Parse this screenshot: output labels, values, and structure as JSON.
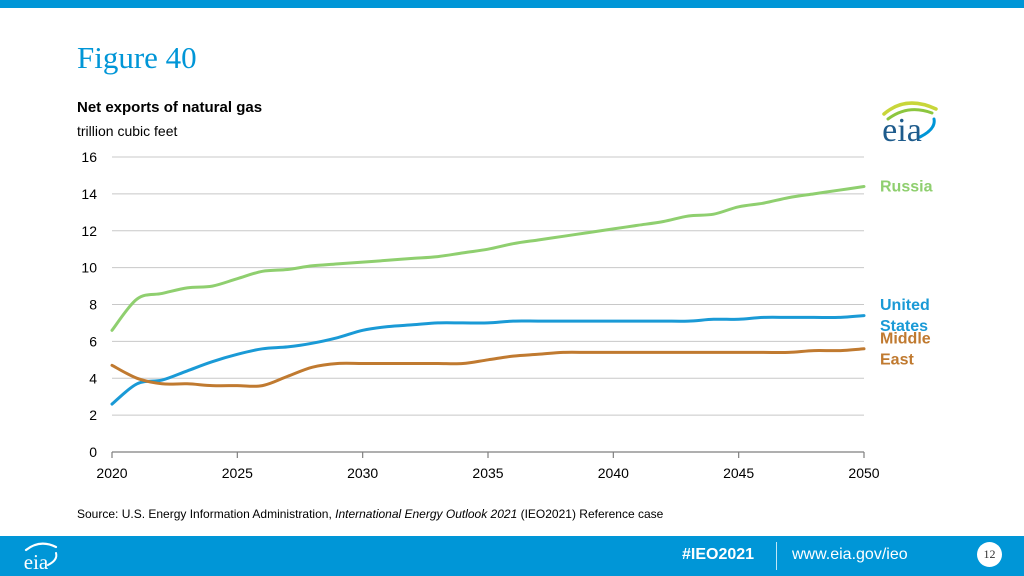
{
  "figure_title": "Figure 40",
  "source": {
    "prefix": "Source:  U.S. Energy Information Administration, ",
    "publication": "International Energy Outlook 2021",
    "suffix": " (IEO2021) Reference case"
  },
  "logo_text": "eia",
  "footer": {
    "hashtag": "#IEO2021",
    "website": "www.eia.gov/ieo",
    "page_number": "12"
  },
  "colors": {
    "brand_blue": "#0096d7",
    "russia": "#8fcf6f",
    "united_states": "#1a9ad6",
    "middle_east": "#c07a30",
    "grid": "#c8c8c8",
    "logo_yellow": "#c8d63a",
    "logo_green": "#8cc63f"
  },
  "chart_data": {
    "type": "line",
    "title": "Net exports of natural gas",
    "ylabel": "trillion cubic feet",
    "xlabel": "",
    "xlim": [
      2020,
      2050
    ],
    "ylim": [
      0,
      16
    ],
    "x_ticks": [
      2020,
      2025,
      2030,
      2035,
      2040,
      2045,
      2050
    ],
    "y_ticks": [
      0,
      2,
      4,
      6,
      8,
      10,
      12,
      14,
      16
    ],
    "grid": true,
    "legend": "inline labels at right end of each line",
    "x": [
      2020,
      2021,
      2022,
      2023,
      2024,
      2025,
      2026,
      2027,
      2028,
      2029,
      2030,
      2031,
      2032,
      2033,
      2034,
      2035,
      2036,
      2037,
      2038,
      2039,
      2040,
      2041,
      2042,
      2043,
      2044,
      2045,
      2046,
      2047,
      2048,
      2049,
      2050
    ],
    "series": [
      {
        "name": "Russia",
        "label_lines": [
          "Russia"
        ],
        "color": "#8fcf6f",
        "values": [
          6.6,
          8.3,
          8.6,
          8.9,
          9.0,
          9.4,
          9.8,
          9.9,
          10.1,
          10.2,
          10.3,
          10.4,
          10.5,
          10.6,
          10.8,
          11.0,
          11.3,
          11.5,
          11.7,
          11.9,
          12.1,
          12.3,
          12.5,
          12.8,
          12.9,
          13.3,
          13.5,
          13.8,
          14.0,
          14.2,
          14.4
        ]
      },
      {
        "name": "United States",
        "label_lines": [
          "United",
          "States"
        ],
        "color": "#1a9ad6",
        "values": [
          2.6,
          3.7,
          3.9,
          4.4,
          4.9,
          5.3,
          5.6,
          5.7,
          5.9,
          6.2,
          6.6,
          6.8,
          6.9,
          7.0,
          7.0,
          7.0,
          7.1,
          7.1,
          7.1,
          7.1,
          7.1,
          7.1,
          7.1,
          7.1,
          7.2,
          7.2,
          7.3,
          7.3,
          7.3,
          7.3,
          7.4
        ]
      },
      {
        "name": "Middle East",
        "label_lines": [
          "Middle",
          "East"
        ],
        "color": "#c07a30",
        "values": [
          4.7,
          4.0,
          3.7,
          3.7,
          3.6,
          3.6,
          3.6,
          4.1,
          4.6,
          4.8,
          4.8,
          4.8,
          4.8,
          4.8,
          4.8,
          5.0,
          5.2,
          5.3,
          5.4,
          5.4,
          5.4,
          5.4,
          5.4,
          5.4,
          5.4,
          5.4,
          5.4,
          5.4,
          5.5,
          5.5,
          5.6
        ]
      }
    ]
  }
}
